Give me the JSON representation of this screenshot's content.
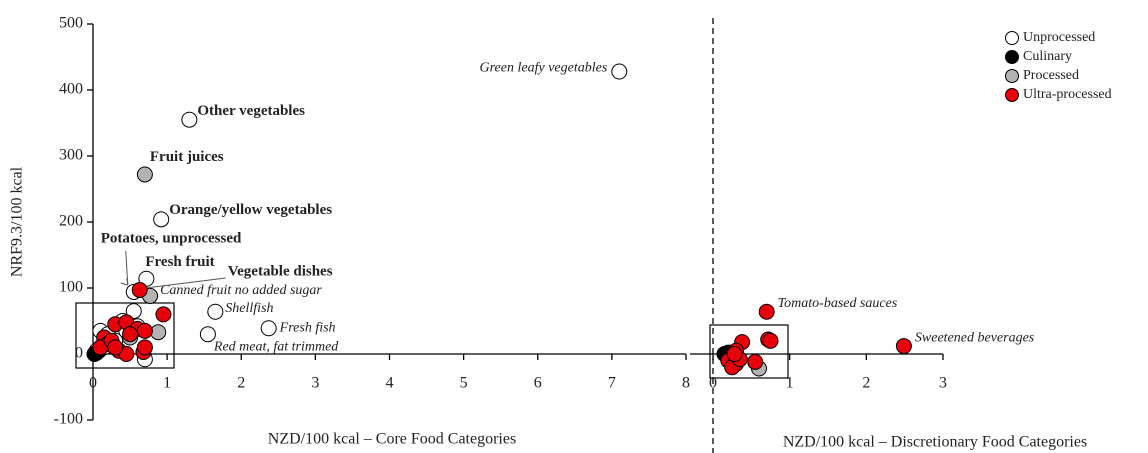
{
  "chart_data": [
    {
      "type": "scatter",
      "x_label": "NZD/100 kcal – Core Food Categories",
      "y_label": "NRF9.3/100 kcal",
      "xlim": [
        0,
        8
      ],
      "xticks": [
        0,
        1,
        2,
        3,
        4,
        5,
        6,
        7,
        8
      ],
      "ylim": [
        -100,
        500
      ],
      "yticks": [
        -100,
        0,
        100,
        200,
        300,
        400,
        500
      ],
      "series": [
        {
          "name": "Unprocessed",
          "color": "#ffffff",
          "x": [
            7.1,
            1.3,
            0.92,
            0.72,
            0.55,
            1.65,
            2.37,
            1.55,
            0.1,
            0.2,
            0.4,
            0.55,
            0.6,
            0.7,
            0.3,
            0.15,
            0.45,
            0.05
          ],
          "values": [
            428,
            355,
            204,
            114,
            94,
            64,
            39,
            30,
            35,
            30,
            50,
            65,
            42,
            -8,
            20,
            10,
            35,
            5
          ],
          "labels": [
            "Green leafy vegetables",
            "Other vegetables",
            "Orange/yellow vegetables",
            "Fresh fruit",
            "Potatoes, unprocessed",
            "Shellfish",
            "Fresh fish",
            "Red meat, fat trimmed",
            null,
            null,
            null,
            null,
            null,
            null,
            null,
            null,
            null,
            null
          ]
        },
        {
          "name": "Culinary",
          "color": "#000000",
          "x": [
            0.02,
            0.05,
            0.08
          ],
          "values": [
            0,
            2,
            5
          ]
        },
        {
          "name": "Processed",
          "color": "#b3b3b3",
          "x": [
            0.7,
            0.77,
            0.88,
            0.5
          ],
          "values": [
            272,
            88,
            33,
            25
          ],
          "labels": [
            "Fruit juices",
            "Canned fruit no added sugar",
            null,
            null
          ]
        },
        {
          "name": "Ultra-processed",
          "color": "#e8000b",
          "x": [
            0.63,
            0.95,
            0.3,
            0.45,
            0.6,
            0.7,
            0.15,
            0.2,
            0.1,
            0.25,
            0.35,
            0.45,
            0.68,
            0.7,
            0.3,
            0.5
          ],
          "values": [
            97,
            60,
            45,
            48,
            38,
            35,
            25,
            15,
            10,
            20,
            5,
            0,
            3,
            10,
            10,
            30
          ],
          "labels": [
            "Vegetable dishes",
            null,
            null,
            null,
            null,
            null,
            null,
            null,
            null,
            null,
            null,
            null,
            null,
            null,
            null,
            null
          ]
        }
      ]
    },
    {
      "type": "scatter",
      "x_label": "NZD/100 kcal – Discretionary Food Categories",
      "xlim": [
        0,
        3
      ],
      "xticks": [
        0,
        1,
        2,
        3
      ],
      "ylim": [
        -100,
        500
      ],
      "legend": "upper right",
      "series": [
        {
          "name": "Unprocessed",
          "color": "#ffffff",
          "x": [
            0.3
          ],
          "values": [
            -5
          ]
        },
        {
          "name": "Culinary",
          "color": "#000000",
          "x": [
            0.15,
            0.2,
            0.25
          ],
          "values": [
            0,
            2,
            -3
          ]
        },
        {
          "name": "Processed",
          "color": "#b3b3b3",
          "x": [
            0.6
          ],
          "values": [
            -22
          ]
        },
        {
          "name": "Ultra-processed",
          "color": "#e8000b",
          "x": [
            0.7,
            2.49,
            0.72,
            0.75,
            0.38,
            0.3,
            0.2,
            0.3,
            0.25,
            0.35,
            0.55,
            0.28
          ],
          "values": [
            64,
            12,
            22,
            20,
            18,
            5,
            -10,
            -15,
            -20,
            -8,
            -12,
            0
          ],
          "labels": [
            "Tomato-based sauces",
            "Sweetened beverages",
            null,
            null,
            null,
            null,
            null,
            null,
            null,
            null,
            null,
            null
          ]
        }
      ]
    }
  ]
}
